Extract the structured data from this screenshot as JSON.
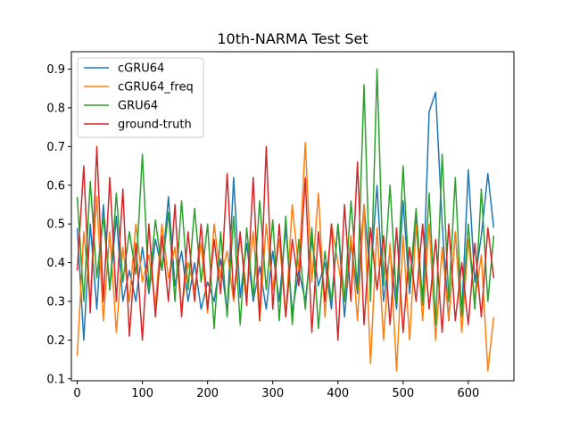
{
  "chart_data": {
    "type": "line",
    "title": "10th-NARMA Test Set",
    "xlabel": "",
    "ylabel": "",
    "xlim": [
      -9,
      670
    ],
    "ylim": [
      0.095,
      0.945
    ],
    "x_ticks": [
      0,
      100,
      200,
      300,
      400,
      500,
      600
    ],
    "y_ticks": [
      0.1,
      0.2,
      0.3,
      0.4,
      0.5,
      0.6,
      0.7,
      0.8,
      0.9
    ],
    "grid": false,
    "legend": "top-left",
    "x": [
      0,
      10,
      20,
      30,
      40,
      50,
      60,
      70,
      80,
      90,
      100,
      110,
      120,
      130,
      140,
      150,
      160,
      170,
      180,
      190,
      200,
      210,
      220,
      230,
      240,
      250,
      260,
      270,
      280,
      290,
      300,
      310,
      320,
      330,
      340,
      350,
      360,
      370,
      380,
      390,
      400,
      410,
      420,
      430,
      440,
      450,
      460,
      470,
      480,
      490,
      500,
      510,
      520,
      530,
      540,
      550,
      560,
      570,
      580,
      590,
      600,
      610,
      620,
      630,
      639
    ],
    "series": [
      {
        "name": "cGRU64",
        "color": "#1f77b4",
        "values": [
          0.49,
          0.2,
          0.5,
          0.28,
          0.55,
          0.33,
          0.52,
          0.3,
          0.38,
          0.3,
          0.44,
          0.32,
          0.46,
          0.38,
          0.57,
          0.34,
          0.43,
          0.3,
          0.4,
          0.28,
          0.35,
          0.3,
          0.41,
          0.27,
          0.62,
          0.31,
          0.45,
          0.3,
          0.39,
          0.28,
          0.43,
          0.3,
          0.49,
          0.27,
          0.38,
          0.3,
          0.46,
          0.34,
          0.4,
          0.28,
          0.5,
          0.26,
          0.45,
          0.32,
          0.55,
          0.36,
          0.6,
          0.3,
          0.43,
          0.28,
          0.56,
          0.32,
          0.52,
          0.3,
          0.79,
          0.84,
          0.5,
          0.25,
          0.48,
          0.27,
          0.64,
          0.35,
          0.47,
          0.63,
          0.49
        ]
      },
      {
        "name": "cGRU64_freq",
        "color": "#ff7f0e",
        "values": [
          0.16,
          0.48,
          0.3,
          0.57,
          0.25,
          0.48,
          0.22,
          0.44,
          0.3,
          0.5,
          0.35,
          0.42,
          0.29,
          0.5,
          0.36,
          0.44,
          0.28,
          0.4,
          0.33,
          0.45,
          0.27,
          0.5,
          0.36,
          0.43,
          0.3,
          0.47,
          0.32,
          0.48,
          0.25,
          0.5,
          0.33,
          0.46,
          0.26,
          0.55,
          0.38,
          0.71,
          0.35,
          0.58,
          0.26,
          0.5,
          0.4,
          0.3,
          0.47,
          0.25,
          0.55,
          0.14,
          0.49,
          0.2,
          0.45,
          0.12,
          0.47,
          0.2,
          0.5,
          0.25,
          0.5,
          0.2,
          0.44,
          0.25,
          0.48,
          0.22,
          0.46,
          0.3,
          0.42,
          0.12,
          0.26
        ]
      },
      {
        "name": "GRU64",
        "color": "#2ca02c",
        "values": [
          0.57,
          0.3,
          0.61,
          0.36,
          0.52,
          0.33,
          0.58,
          0.35,
          0.48,
          0.37,
          0.68,
          0.33,
          0.51,
          0.38,
          0.53,
          0.3,
          0.56,
          0.33,
          0.54,
          0.35,
          0.5,
          0.23,
          0.48,
          0.26,
          0.52,
          0.24,
          0.49,
          0.31,
          0.56,
          0.33,
          0.51,
          0.25,
          0.52,
          0.24,
          0.46,
          0.28,
          0.49,
          0.23,
          0.43,
          0.3,
          0.5,
          0.3,
          0.56,
          0.33,
          0.86,
          0.3,
          0.9,
          0.34,
          0.6,
          0.3,
          0.65,
          0.34,
          0.54,
          0.29,
          0.58,
          0.24,
          0.68,
          0.3,
          0.62,
          0.26,
          0.5,
          0.28,
          0.59,
          0.3,
          0.47
        ]
      },
      {
        "name": "ground-truth",
        "color": "#d62728",
        "values": [
          0.38,
          0.65,
          0.27,
          0.7,
          0.3,
          0.62,
          0.3,
          0.59,
          0.21,
          0.45,
          0.2,
          0.5,
          0.26,
          0.47,
          0.3,
          0.55,
          0.26,
          0.48,
          0.3,
          0.5,
          0.28,
          0.46,
          0.32,
          0.63,
          0.31,
          0.48,
          0.29,
          0.62,
          0.25,
          0.7,
          0.28,
          0.5,
          0.26,
          0.46,
          0.34,
          0.62,
          0.22,
          0.48,
          0.3,
          0.5,
          0.2,
          0.55,
          0.3,
          0.66,
          0.24,
          0.49,
          0.33,
          0.47,
          0.24,
          0.49,
          0.22,
          0.44,
          0.3,
          0.5,
          0.28,
          0.46,
          0.22,
          0.5,
          0.25,
          0.4,
          0.24,
          0.45,
          0.26,
          0.49,
          0.36
        ]
      }
    ]
  }
}
